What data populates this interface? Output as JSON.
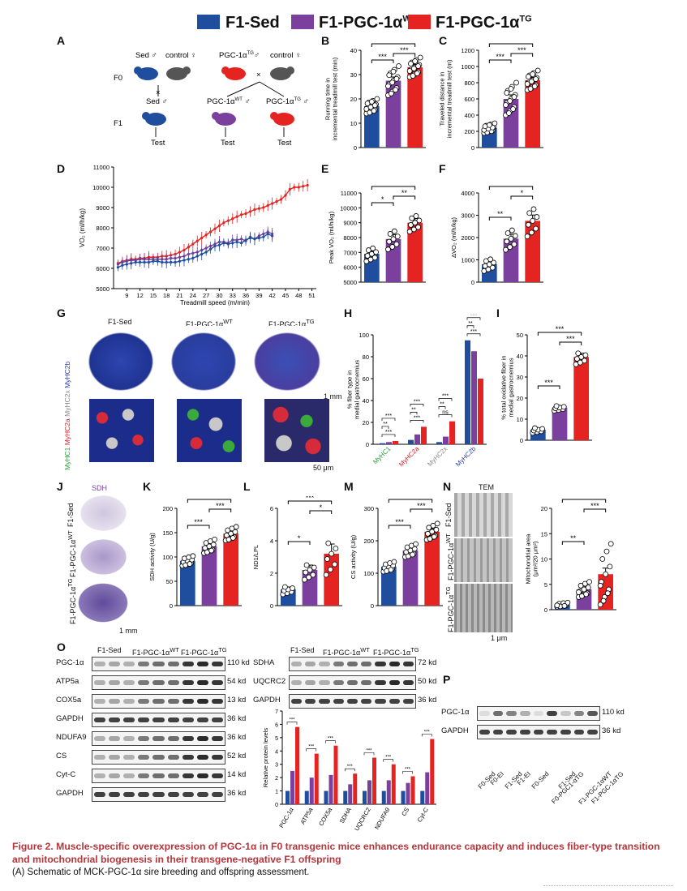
{
  "legend": {
    "sed": {
      "label": "F1-Sed",
      "color": "#1f4e9f"
    },
    "wt": {
      "label": "F1-PGC-1α",
      "sup": "WT",
      "color": "#7b3f9e"
    },
    "tg": {
      "label": "F1-PGC-1α",
      "sup": "TG",
      "color": "#e52321"
    }
  },
  "panels": {
    "A": "A",
    "B": "B",
    "C": "C",
    "D": "D",
    "E": "E",
    "F": "F",
    "G": "G",
    "H": "H",
    "I": "I",
    "J": "J",
    "K": "K",
    "L": "L",
    "M": "M",
    "N": "N",
    "O": "O",
    "P": "P"
  },
  "schematic": {
    "f0": "F0",
    "f1": "F1",
    "sed_male": "Sed ♂",
    "control1": "control ♀",
    "pgc_male": "PGC-1α",
    "pgc_male_sup": "TG",
    "pgc_male_tail": "♂",
    "control2": "control ♀",
    "cross": "×",
    "f1_sed": "Sed ♂",
    "f1_wt": "PGC-1α",
    "f1_wt_sup": "WT",
    "f1_wt_tail": " ♂",
    "f1_tg": "PGC-1α",
    "f1_tg_sup": "TG",
    "f1_tg_tail": " ♂",
    "test": "Test"
  },
  "stats": {
    "s3": "***",
    "s2": "**",
    "s1": "*",
    "ns": "ns"
  },
  "chart_data": [
    {
      "id": "B",
      "type": "bar",
      "ylabel": "Running time in incremental treadmill test (min)",
      "ylim": [
        0,
        40
      ],
      "yticks": [
        "0",
        "10",
        "20",
        "30",
        "40"
      ],
      "values": [
        17,
        27.5,
        33
      ],
      "errors": [
        0.8,
        1.5,
        1.2
      ]
    },
    {
      "id": "C",
      "type": "bar",
      "ylabel": "Traveled distance in incremental treadmill test (m)",
      "ylim": [
        0,
        1200
      ],
      "yticks": [
        "0",
        "200",
        "400",
        "600",
        "800",
        "1000",
        "1200"
      ],
      "values": [
        240,
        600,
        830
      ],
      "errors": [
        20,
        50,
        35
      ]
    },
    {
      "id": "D",
      "type": "line",
      "xlabel": "Treadmill speed (m/min)",
      "ylabel": "VO₂ (ml/h/kg)",
      "ylim": [
        5000,
        11000
      ],
      "yticks": [
        "5000",
        "6000",
        "7000",
        "8000",
        "9000",
        "10000",
        "11000"
      ],
      "xticks": [
        "9",
        "12",
        "15",
        "18",
        "21",
        "24",
        "27",
        "30",
        "33",
        "36",
        "39",
        "42",
        "45",
        "48",
        "51"
      ],
      "series": [
        {
          "x": [
            7,
            8,
            9,
            10,
            11,
            12,
            13,
            14,
            15,
            16,
            17,
            18,
            19,
            20,
            21,
            22,
            23,
            24,
            25,
            26,
            27,
            28,
            29,
            30,
            31,
            32,
            33,
            34,
            35,
            36,
            37,
            38,
            39,
            40,
            41,
            42
          ],
          "values": [
            6050,
            6150,
            6200,
            6250,
            6300,
            6300,
            6300,
            6300,
            6350,
            6350,
            6300,
            6300,
            6300,
            6300,
            6350,
            6400,
            6450,
            6500,
            6600,
            6700,
            6800,
            6950,
            7100,
            7150,
            7250,
            7200,
            7250,
            7300,
            7250,
            7400,
            7500,
            7450,
            7500,
            7550,
            7700,
            7600
          ]
        },
        {
          "x": [
            7,
            8,
            9,
            10,
            11,
            12,
            13,
            14,
            15,
            16,
            17,
            18,
            19,
            20,
            21,
            22,
            23,
            24,
            25,
            26,
            27,
            28,
            29,
            30,
            31,
            32,
            33,
            34,
            35,
            36,
            37,
            38,
            39,
            40,
            41,
            42
          ],
          "values": [
            6200,
            6300,
            6350,
            6400,
            6400,
            6450,
            6450,
            6450,
            6450,
            6450,
            6450,
            6450,
            6500,
            6500,
            6550,
            6600,
            6700,
            6750,
            6800,
            6900,
            7000,
            7100,
            7200,
            7300,
            7300,
            7250,
            7400,
            7400,
            7450,
            7350,
            7550,
            7450,
            7600,
            7700,
            7800,
            7700
          ]
        },
        {
          "x": [
            7,
            8,
            9,
            10,
            11,
            12,
            13,
            14,
            15,
            16,
            17,
            18,
            19,
            20,
            21,
            22,
            23,
            24,
            25,
            26,
            27,
            28,
            29,
            30,
            31,
            32,
            33,
            34,
            35,
            36,
            37,
            38,
            39,
            40,
            41,
            42,
            43,
            44,
            45,
            46,
            47,
            48,
            49,
            50
          ],
          "values": [
            6250,
            6350,
            6400,
            6450,
            6450,
            6500,
            6500,
            6550,
            6550,
            6550,
            6600,
            6600,
            6650,
            6700,
            6800,
            6900,
            7050,
            7200,
            7350,
            7500,
            7650,
            7800,
            7950,
            8100,
            8250,
            8350,
            8450,
            8550,
            8650,
            8700,
            8800,
            8900,
            8950,
            9000,
            9100,
            9200,
            9300,
            9400,
            9600,
            9900,
            10000,
            10000,
            10050,
            10100
          ]
        }
      ]
    },
    {
      "id": "E",
      "type": "bar",
      "ylabel": "Peak VO₂ (ml/h/kg)",
      "ylim": [
        5000,
        11000
      ],
      "yticks": [
        "5000",
        "6000",
        "7000",
        "8000",
        "9000",
        "10000",
        "11000"
      ],
      "values": [
        6900,
        7900,
        9000
      ],
      "errors": [
        200,
        300,
        280
      ]
    },
    {
      "id": "F",
      "type": "bar",
      "ylabel": "ΔVO₂ (ml/h/kg)",
      "ylim": [
        0,
        4000
      ],
      "yticks": [
        "0",
        "1000",
        "2000",
        "3000",
        "4000"
      ],
      "values": [
        800,
        1950,
        2750
      ],
      "errors": [
        120,
        200,
        260
      ]
    },
    {
      "id": "H",
      "type": "bar",
      "ylabel": "% fiber type in medial gastrocnemius",
      "ylim": [
        0,
        100
      ],
      "yticks": [
        "0",
        "20",
        "40",
        "60",
        "80",
        "100"
      ],
      "categories": [
        "MyHC1",
        "MyHC2a",
        "MyHC2x",
        "MyHC2b"
      ],
      "series": [
        {
          "values": [
            1,
            4,
            2,
            95
          ]
        },
        {
          "values": [
            2,
            9,
            7,
            85
          ]
        },
        {
          "values": [
            3,
            16,
            21,
            60
          ]
        }
      ]
    },
    {
      "id": "I",
      "type": "bar",
      "ylabel": "% total oxidative fiber in medial gastrocnemius",
      "ylim": [
        0,
        50
      ],
      "yticks": [
        "0",
        "10",
        "20",
        "30",
        "40",
        "50"
      ],
      "values": [
        5,
        15.5,
        39.5
      ],
      "errors": [
        0.8,
        0.8,
        1.8
      ]
    },
    {
      "id": "K",
      "type": "bar",
      "ylabel": "SDH activity (U/g)",
      "ylim": [
        0,
        200
      ],
      "yticks": [
        "0",
        "50",
        "100",
        "150",
        "200"
      ],
      "values": [
        92,
        122,
        148
      ],
      "errors": [
        5,
        6,
        6
      ]
    },
    {
      "id": "L",
      "type": "bar",
      "ylabel": "ND1/LPL",
      "ylim": [
        0,
        6
      ],
      "yticks": [
        "0",
        "2",
        "4",
        "6"
      ],
      "values": [
        1.0,
        2.2,
        3.2
      ],
      "errors": [
        0.15,
        0.3,
        0.6
      ]
    },
    {
      "id": "M",
      "type": "bar",
      "ylabel": "CS activity (U/g)",
      "ylim": [
        0,
        300
      ],
      "yticks": [
        "0",
        "100",
        "200",
        "300"
      ],
      "values": [
        120,
        170,
        228
      ],
      "errors": [
        7,
        9,
        10
      ]
    },
    {
      "id": "Nbar",
      "type": "bar",
      "ylabel": "Mitochondrial area (μm²/20 μm²)",
      "ylim": [
        0,
        20
      ],
      "yticks": [
        "0",
        "5",
        "10",
        "15",
        "20"
      ],
      "values": [
        1.0,
        4.0,
        7.0
      ],
      "errors": [
        0.2,
        0.5,
        1.2
      ]
    },
    {
      "id": "Obar",
      "type": "bar",
      "ylabel": "Relative protein levels",
      "ylim": [
        0,
        7
      ],
      "yticks": [
        "0",
        "1",
        "2",
        "3",
        "4",
        "5",
        "6",
        "7"
      ],
      "categories": [
        "PGC-1α",
        "ATP5a",
        "COX5a",
        "SDHA",
        "UQCRC2",
        "NDUFA9",
        "CS",
        "Cyt-C"
      ],
      "series": [
        {
          "values": [
            1,
            1,
            1,
            1,
            1,
            1,
            1,
            1
          ]
        },
        {
          "values": [
            2.5,
            2.0,
            2.2,
            1.5,
            1.8,
            1.8,
            1.6,
            2.4
          ]
        },
        {
          "values": [
            5.8,
            3.8,
            4.4,
            2.3,
            3.5,
            3.0,
            2.1,
            4.9
          ]
        }
      ]
    }
  ],
  "panel_G": {
    "cols": [
      "F1-Sed",
      "F1-PGC-1α",
      "F1-PGC-1α"
    ],
    "sups": [
      "",
      "WT",
      "TG"
    ],
    "side_top": [
      "MyHC1 ",
      "MyHC2a ",
      "MyHC2x ",
      "MyHC2b"
    ],
    "scale_top": "1 mm",
    "scale_bottom": "50 μm"
  },
  "panel_J": {
    "title": "SDH",
    "rows": [
      "F1-Sed",
      "F1-PGC-1α",
      "F1-PGC-1α"
    ],
    "sups": [
      "",
      "WT",
      "TG"
    ],
    "scale": "1 mm"
  },
  "panel_N": {
    "title": "TEM",
    "rows": [
      "F1-Sed",
      "F1-PGC-1α",
      "F1-PGC-1α"
    ],
    "sups": [
      "",
      "WT",
      "TG"
    ],
    "scale": "1 μm"
  },
  "panel_O": {
    "header1": [
      "F1-Sed",
      "F1-PGC-1α",
      "F1-PGC-1α"
    ],
    "header1_sups": [
      "",
      "WT",
      "TG"
    ],
    "left_rows": [
      "PGC-1α",
      "ATP5a",
      "COX5a",
      "GAPDH",
      "NDUFA9",
      "CS",
      "Cyt-C",
      "GAPDH"
    ],
    "left_kd": [
      "110 kd",
      "54 kd",
      "13 kd",
      "36 kd",
      "36 kd",
      "52 kd",
      "14 kd",
      "36 kd"
    ],
    "right_rows": [
      "SDHA",
      "UQCRC2",
      "GAPDH"
    ],
    "right_kd": [
      "72 kd",
      "50 kd",
      "36 kd"
    ]
  },
  "panel_P": {
    "rows": [
      "PGC-1α",
      "GAPDH"
    ],
    "kd": [
      "110 kd",
      "36 kd"
    ],
    "lanes": [
      "F0-Sed",
      "F0-EI",
      "F1-Sed",
      "F1-EI",
      "F0-Sed",
      "F0-PGC1-α",
      "F1-Sed",
      "F1-PGC-1α",
      "F1-PGC-1α"
    ],
    "lane_sups": [
      "",
      "",
      "",
      "",
      "",
      "TG",
      "",
      "WT",
      "TG"
    ]
  },
  "caption": {
    "title": "Figure 2. Muscle-specific overexpression of PGC-1α in F0 transgenic mice enhances endurance capacity and induces fiber-type transition and mitochondrial biogenesis in their transgene-negative F1 offspring",
    "text": "(A) Schematic of MCK-PGC-1α sire breeding and offspring assessment."
  }
}
